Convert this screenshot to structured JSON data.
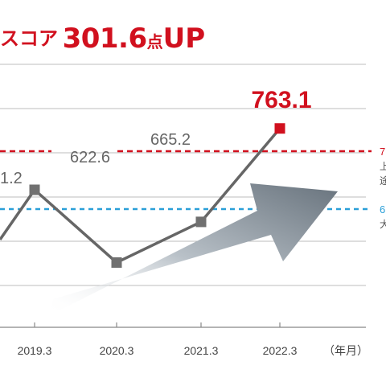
{
  "headline": {
    "prefix": "スコア",
    "number": "301.6",
    "unit": "点",
    "suffix": "UP"
  },
  "chart_data": {
    "type": "line",
    "categories": [
      "2019.3",
      "2020.3",
      "2021.3",
      "2022.3"
    ],
    "series": [
      {
        "values": [
          null,
          622.6,
          665.2,
          763.1
        ]
      }
    ],
    "data_labels": [
      {
        "text": "1.2",
        "emphasis": false
      },
      {
        "text": "622.6",
        "emphasis": false
      },
      {
        "text": "665.2",
        "emphasis": false
      },
      {
        "text": "763.1",
        "emphasis": true
      }
    ],
    "xlabel": "（年月）",
    "reference_lines": [
      {
        "label": "7",
        "note": "上",
        "note2": "途",
        "color": "#d1101e",
        "style": "dashed"
      },
      {
        "label": "6",
        "note": "大",
        "color": "#2a9fd8",
        "style": "dashed"
      }
    ],
    "grid": true,
    "colors": {
      "line": "#666666",
      "marker": "#707070",
      "highlight": "#d1101e",
      "grid": "#bdbdbd",
      "axis": "#888888"
    }
  }
}
